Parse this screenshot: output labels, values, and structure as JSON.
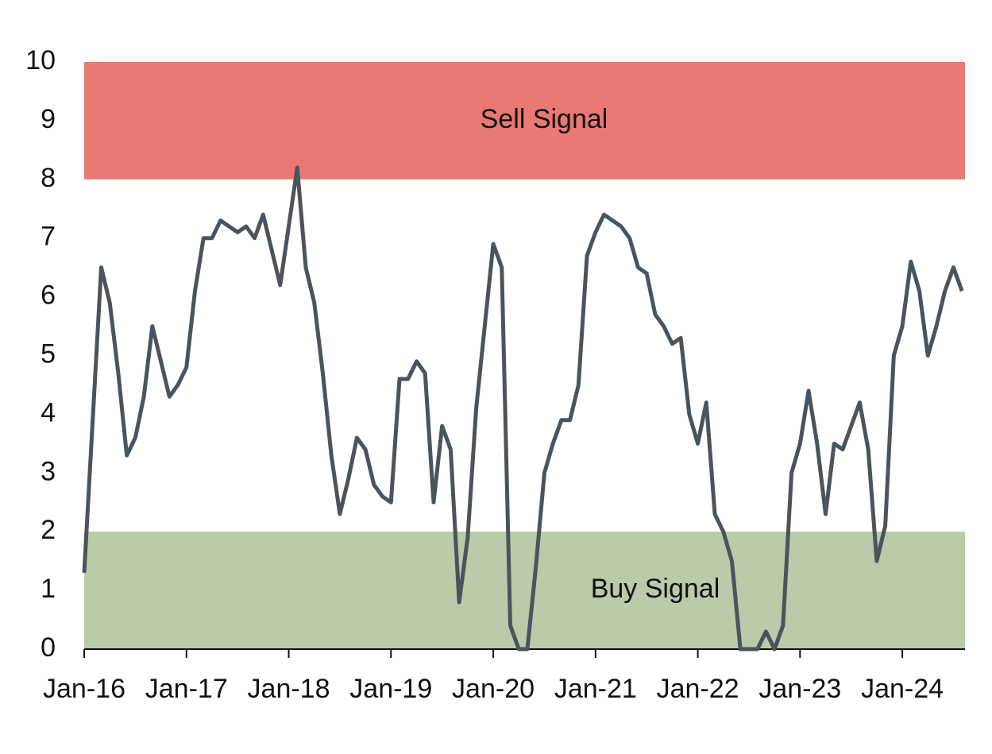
{
  "chart_data": {
    "type": "line",
    "categories": [
      "Jan-16",
      null,
      null,
      null,
      null,
      null,
      null,
      null,
      null,
      null,
      null,
      null,
      "Jan-17",
      null,
      null,
      null,
      null,
      null,
      null,
      null,
      null,
      null,
      null,
      null,
      "Jan-18",
      null,
      null,
      null,
      null,
      null,
      null,
      null,
      null,
      null,
      null,
      null,
      "Jan-19",
      null,
      null,
      null,
      null,
      null,
      null,
      null,
      null,
      null,
      null,
      null,
      "Jan-20",
      null,
      null,
      null,
      null,
      null,
      null,
      null,
      null,
      null,
      null,
      null,
      "Jan-21",
      null,
      null,
      null,
      null,
      null,
      null,
      null,
      null,
      null,
      null,
      null,
      "Jan-22",
      null,
      null,
      null,
      null,
      null,
      null,
      null,
      null,
      null,
      null,
      null,
      "Jan-23",
      null,
      null,
      null,
      null,
      null,
      null,
      null,
      null,
      null,
      null,
      null,
      "Jan-24",
      null,
      null,
      null,
      null,
      null,
      null,
      null
    ],
    "values": [
      1.3,
      3.9,
      6.5,
      5.9,
      4.7,
      3.3,
      3.6,
      4.3,
      5.5,
      4.9,
      4.3,
      4.5,
      4.8,
      6.1,
      7.0,
      7.0,
      7.3,
      7.2,
      7.1,
      7.2,
      7.0,
      7.4,
      6.8,
      6.2,
      7.2,
      8.2,
      6.5,
      5.9,
      4.7,
      3.3,
      2.3,
      2.9,
      3.6,
      3.4,
      2.8,
      2.6,
      2.5,
      4.6,
      4.6,
      4.9,
      4.7,
      2.5,
      3.8,
      3.4,
      0.8,
      1.9,
      4.1,
      5.5,
      6.9,
      6.5,
      0.4,
      0,
      0,
      1.4,
      3.0,
      3.5,
      3.9,
      3.9,
      4.5,
      6.7,
      7.1,
      7.4,
      7.3,
      7.2,
      7.0,
      6.5,
      6.4,
      5.7,
      5.5,
      5.2,
      5.3,
      4.0,
      3.5,
      4.2,
      2.3,
      2.0,
      1.5,
      0,
      0,
      0,
      0.3,
      0,
      0.4,
      3.0,
      3.5,
      4.4,
      3.5,
      2.3,
      3.5,
      3.4,
      3.8,
      4.2,
      3.4,
      1.5,
      2.1,
      5.0,
      5.5,
      6.6,
      6.1,
      5.0,
      5.5,
      6.1,
      6.5,
      6.1
    ],
    "color": "#4a545c",
    "ylim": [
      0,
      10
    ],
    "yticks": [
      0,
      1,
      2,
      3,
      4,
      5,
      6,
      7,
      8,
      9,
      10
    ],
    "zones": [
      {
        "label": "Sell Signal",
        "from": 8,
        "to": 10,
        "color": "#ec7873"
      },
      {
        "label": "Buy Signal",
        "from": 0,
        "to": 2,
        "color": "#b9cba8"
      }
    ]
  }
}
